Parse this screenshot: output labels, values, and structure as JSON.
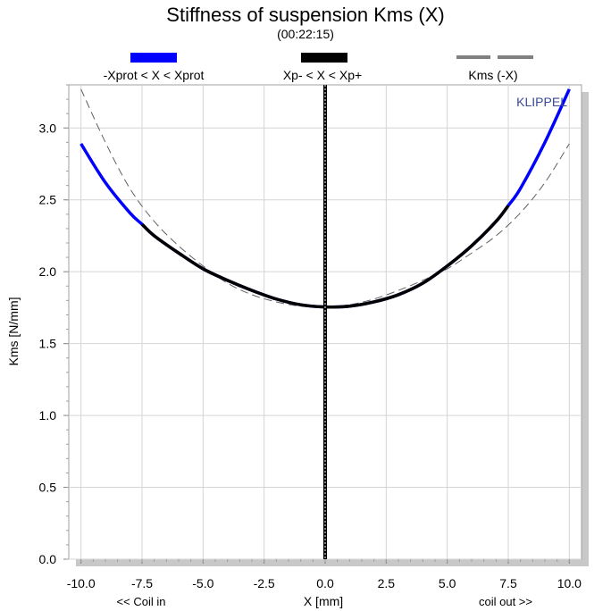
{
  "chart_data": {
    "type": "line",
    "title": "Stiffness of suspension Kms (X)",
    "subtitle": "(00:22:15)",
    "xlabel": "X [mm]",
    "ylabel": "Kms [N/mm]",
    "x_note_left": "<< Coil in",
    "x_note_right": "coil out >>",
    "brand": "KLIPPEL",
    "xlim": [
      -10.5,
      10.5
    ],
    "ylim": [
      0.0,
      3.3
    ],
    "x_ticks": [
      -10.0,
      -7.5,
      -5.0,
      -2.5,
      0.0,
      2.5,
      5.0,
      7.5,
      10.0
    ],
    "x_tick_labels": [
      "-10.0",
      "-7.5",
      "-5.0",
      "-2.5",
      "0.0",
      "2.5",
      "5.0",
      "7.5",
      "10.0"
    ],
    "y_ticks": [
      0.0,
      0.5,
      1.0,
      1.5,
      2.0,
      2.5,
      3.0
    ],
    "y_tick_labels": [
      "0.0",
      "0.5",
      "1.0",
      "1.5",
      "2.0",
      "2.5",
      "3.0"
    ],
    "grid": true,
    "legend": [
      {
        "label": "-Xprot < X < Xprot",
        "color": "#0000ff",
        "style": "solid"
      },
      {
        "label": "Xp- < X < Xp+",
        "color": "#000000",
        "style": "solid"
      },
      {
        "label": "Kms (-X)",
        "color": "#808080",
        "style": "dashed"
      }
    ],
    "series": [
      {
        "name": "-Xprot < X < Xprot",
        "color": "#0000ff",
        "x": [
          -10.0,
          -9.0,
          -8.0,
          -7.5,
          -7.0,
          -6.0,
          -5.0,
          -4.0,
          -3.0,
          -2.0,
          -1.0,
          0.0,
          1.0,
          2.0,
          3.0,
          4.0,
          5.0,
          6.0,
          7.0,
          7.5,
          8.0,
          9.0,
          10.0
        ],
        "y": [
          2.89,
          2.62,
          2.41,
          2.33,
          2.25,
          2.13,
          2.02,
          1.94,
          1.87,
          1.81,
          1.77,
          1.755,
          1.76,
          1.79,
          1.84,
          1.92,
          2.04,
          2.18,
          2.35,
          2.46,
          2.58,
          2.9,
          3.27
        ]
      },
      {
        "name": "Xp- < X < Xp+",
        "color": "#000000",
        "x": [
          -7.5,
          -7.0,
          -6.0,
          -5.0,
          -4.0,
          -3.0,
          -2.0,
          -1.0,
          0.0,
          1.0,
          2.0,
          3.0,
          4.0,
          5.0,
          6.0,
          7.0,
          7.5
        ],
        "y": [
          2.33,
          2.25,
          2.13,
          2.02,
          1.94,
          1.87,
          1.81,
          1.77,
          1.755,
          1.76,
          1.79,
          1.84,
          1.92,
          2.04,
          2.18,
          2.35,
          2.46
        ]
      },
      {
        "name": "Kms (-X)",
        "color": "#808080",
        "x": [
          -10.0,
          -9.0,
          -8.0,
          -7.0,
          -6.0,
          -5.0,
          -4.0,
          -3.0,
          -2.0,
          -1.0,
          0.0,
          1.0,
          2.0,
          3.0,
          4.0,
          5.0,
          6.0,
          7.0,
          8.0,
          9.0,
          10.0
        ],
        "y": [
          3.27,
          2.9,
          2.58,
          2.35,
          2.18,
          2.04,
          1.92,
          1.84,
          1.79,
          1.76,
          1.755,
          1.77,
          1.81,
          1.87,
          1.94,
          2.02,
          2.13,
          2.25,
          2.41,
          2.62,
          2.89
        ]
      }
    ],
    "vertical_marker_x": 0.0
  }
}
